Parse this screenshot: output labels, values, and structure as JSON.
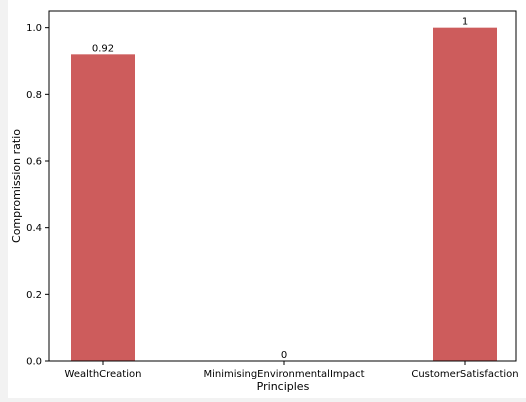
{
  "chart_data": {
    "type": "bar",
    "categories": [
      "WealthCreation",
      "MinimisingEnvironmentalImpact",
      "CustomerSatisfaction"
    ],
    "values": [
      0.92,
      0,
      1
    ],
    "data_labels": [
      "0.92",
      "0",
      "1"
    ],
    "xlabel": "Principles",
    "ylabel": "Compromission ratio",
    "ylim": [
      0,
      1.05
    ],
    "yticks": [
      "0.0",
      "0.2",
      "0.4",
      "0.6",
      "0.8",
      "1.0"
    ],
    "bar_color": "#cd5c5c",
    "grid": false,
    "legend": "none"
  }
}
